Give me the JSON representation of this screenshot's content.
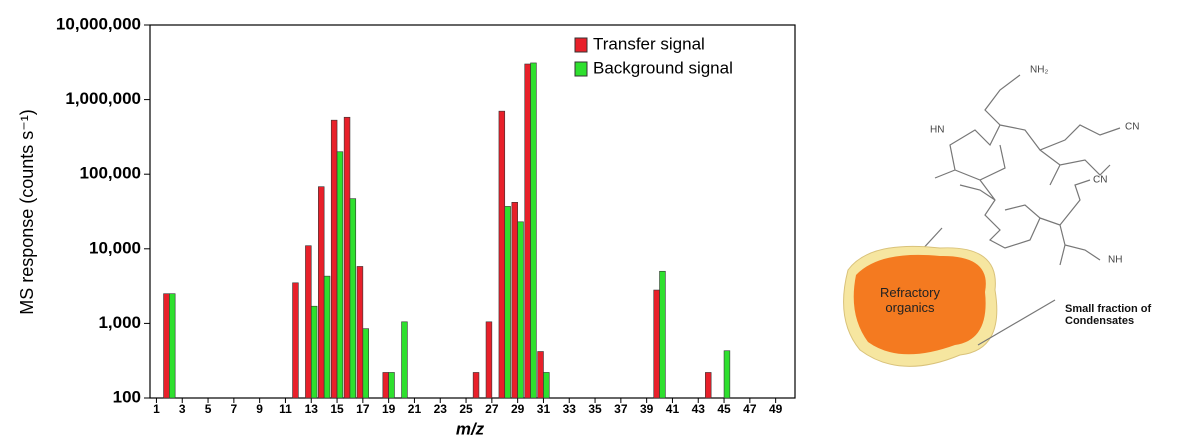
{
  "chart_data": {
    "type": "bar",
    "x_label": "m/z",
    "y_label": "MS response (counts s⁻¹)",
    "log_scale": true,
    "legend": "upper right",
    "x": [
      2,
      12,
      13,
      14,
      15,
      16,
      17,
      19,
      20,
      26,
      27,
      28,
      29,
      30,
      31,
      40,
      44,
      45
    ],
    "series": [
      {
        "name": "Transfer signal",
        "color": "#e8202a",
        "values": [
          2500,
          3500,
          11000,
          68000,
          530000,
          580000,
          5800,
          220,
          null,
          220,
          1050,
          700000,
          42000,
          3000000,
          420,
          2800,
          220,
          null
        ]
      },
      {
        "name": "Background signal",
        "color": "#2ee02e",
        "values": [
          2500,
          null,
          1700,
          4300,
          200000,
          47000,
          850,
          220,
          1050,
          null,
          null,
          37000,
          23000,
          3100000,
          220,
          5000,
          null,
          430
        ]
      }
    ],
    "xlim": [
      0.5,
      50.5
    ],
    "xticks": [
      1,
      3,
      5,
      7,
      9,
      11,
      13,
      15,
      17,
      19,
      21,
      23,
      25,
      27,
      29,
      31,
      33,
      35,
      37,
      39,
      41,
      43,
      45,
      47,
      49
    ],
    "ylim": [
      100,
      10000000
    ],
    "yticks": [
      100,
      {
        "value": 1000,
        "label": "1,000"
      },
      {
        "value": 10000,
        "label": "10,000"
      },
      {
        "value": 100000,
        "label": "100,000"
      },
      {
        "value": 1000000,
        "label": "1,000,000"
      },
      {
        "value": 10000000,
        "label": "10,000,000"
      }
    ]
  },
  "diagram": {
    "blob_label": "Refractory organics",
    "note": "Small fraction of Condensates",
    "groups": [
      "NH₂",
      "CN",
      "HN",
      "CN",
      "NH"
    ]
  }
}
